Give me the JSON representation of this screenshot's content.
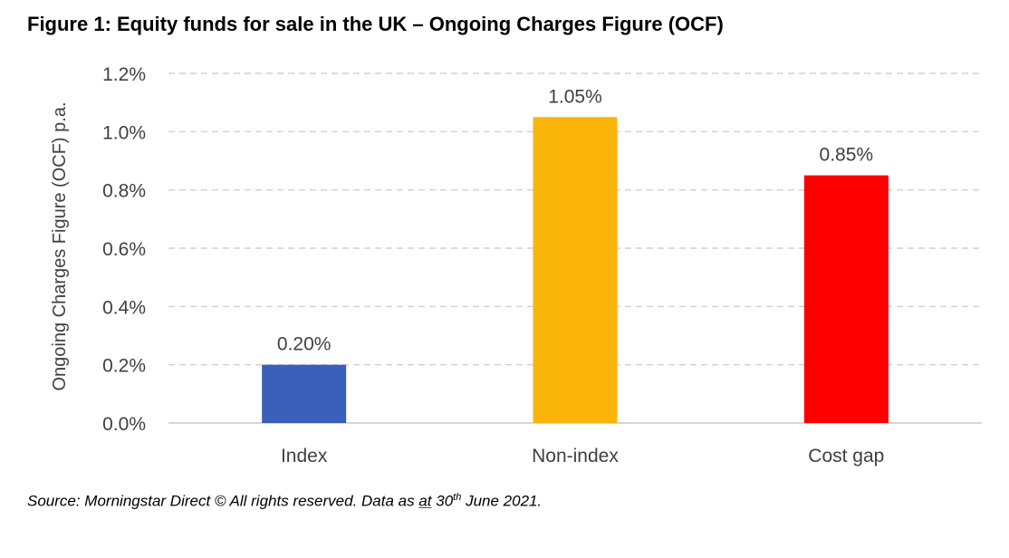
{
  "figure_title": "Figure 1: Equity funds for sale in the UK – Ongoing Charges Figure (OCF)",
  "source": {
    "prefix": "Source: Morningstar Direct © All rights reserved. Data as ",
    "underlined": "at",
    "middle": " 30",
    "superscript": "th",
    "suffix": " June 2021."
  },
  "chart_data": {
    "type": "bar",
    "title": "Figure 1: Equity funds for sale in the UK – Ongoing Charges Figure (OCF)",
    "xlabel": "",
    "ylabel": "Ongoing Charges Figure (OCF) p.a.",
    "categories": [
      "Index",
      "Non-index",
      "Cost gap"
    ],
    "values": [
      0.2,
      1.05,
      0.85
    ],
    "data_labels": [
      "0.20%",
      "1.05%",
      "0.85%"
    ],
    "colors": [
      "#3a5fba",
      "#fbb40a",
      "#ff0000"
    ],
    "ylim": [
      0,
      1.2
    ],
    "yticks": [
      0.0,
      0.2,
      0.4,
      0.6,
      0.8,
      1.0,
      1.2
    ],
    "ytick_labels": [
      "0.0%",
      "0.2%",
      "0.4%",
      "0.6%",
      "0.8%",
      "1.0%",
      "1.2%"
    ],
    "grid": true,
    "grid_style": "dashed",
    "legend": "none"
  }
}
